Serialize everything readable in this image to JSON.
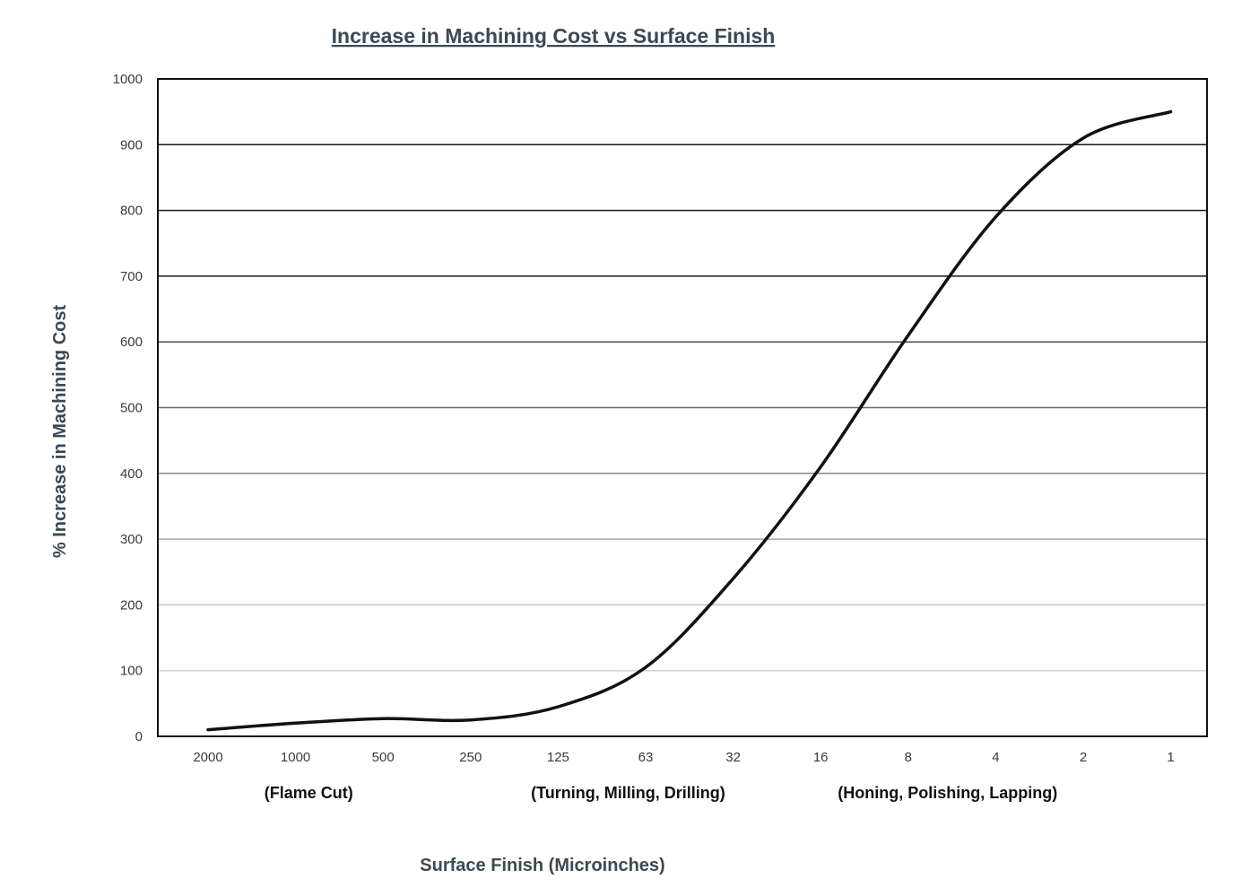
{
  "chart_data": {
    "type": "line",
    "title": "Increase in Machining Cost vs Surface Finish",
    "xlabel": "Surface Finish (Microinches)",
    "ylabel": "% Increase in Machining Cost",
    "categories": [
      "2000",
      "1000",
      "500",
      "250",
      "125",
      "63",
      "32",
      "16",
      "8",
      "4",
      "2",
      "1"
    ],
    "ylim": [
      0,
      1000
    ],
    "yticks": [
      "0",
      "100",
      "200",
      "300",
      "400",
      "500",
      "600",
      "700",
      "800",
      "900",
      "1000"
    ],
    "series": [
      {
        "values": [
          10,
          20,
          27,
          25,
          45,
          105,
          240,
          410,
          610,
          790,
          910,
          950
        ]
      }
    ],
    "annotations": [
      {
        "text": "(Flame Cut)",
        "at_category": 1.15
      },
      {
        "text": "(Turning, Milling, Drilling)",
        "at_category": 4.8
      },
      {
        "text": "(Honing, Polishing, Lapping)",
        "at_category": 8.45
      }
    ],
    "grid": true,
    "legend": "none",
    "line_color": "#111111",
    "grid_colors": [
      "#1a1a1a",
      "#1a1a1a",
      "#1a1a1a",
      "#1a1a1a",
      "#3e4f58",
      "#5b6e78",
      "#7a8c95",
      "#9aabb3",
      "#b6c5cc",
      "#c9d5da"
    ]
  }
}
